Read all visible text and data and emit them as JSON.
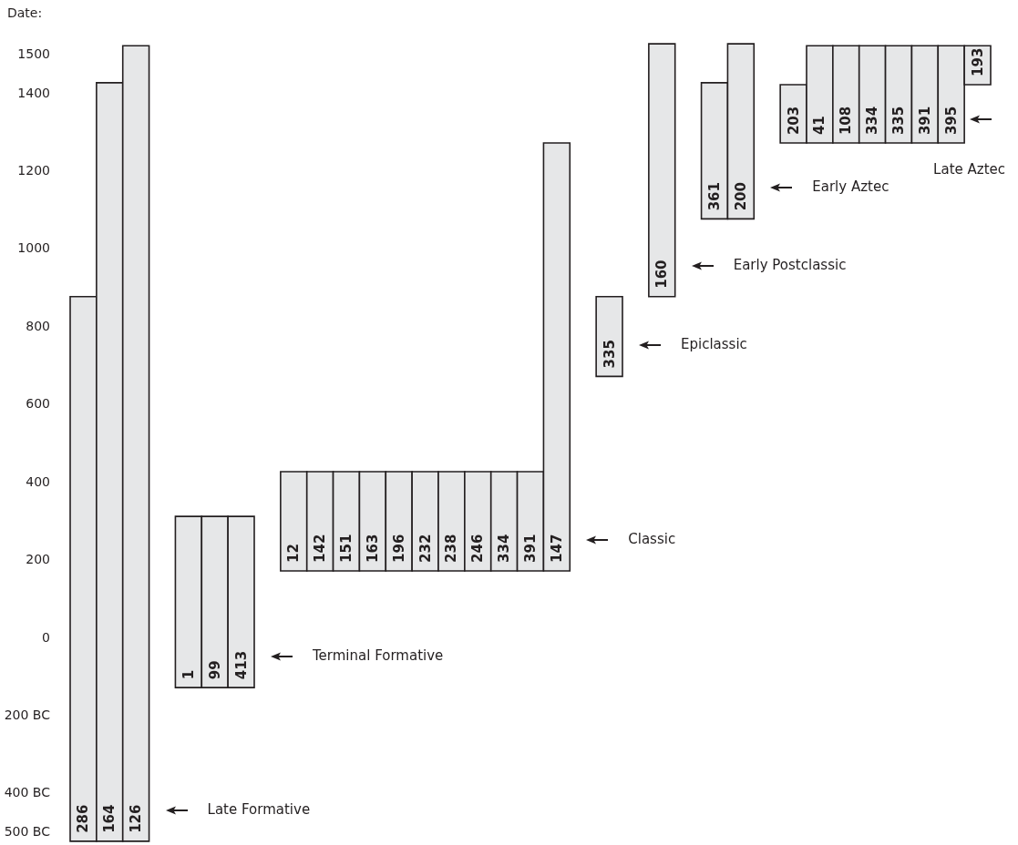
{
  "chart_data": {
    "type": "bar",
    "ylabel": "Date:",
    "categories": [
      "286",
      "164",
      "126",
      null,
      "1",
      "99",
      "413",
      null,
      "12",
      "142",
      "151",
      "163",
      "196",
      "232",
      "238",
      "246",
      "334",
      "391",
      "147",
      null,
      "335",
      null,
      "160",
      null,
      "361",
      "200",
      null,
      "203",
      "41",
      "108",
      "334",
      "335",
      "391",
      "395",
      "193"
    ],
    "base": [
      -525,
      -525,
      -525,
      null,
      -130,
      -130,
      -130,
      null,
      170,
      170,
      170,
      170,
      170,
      170,
      170,
      170,
      170,
      170,
      170,
      null,
      670,
      null,
      875,
      null,
      1075,
      1075,
      null,
      1270,
      1270,
      1270,
      1270,
      1270,
      1270,
      1270,
      1420
    ],
    "values": [
      1400,
      1950,
      2045,
      null,
      440,
      440,
      440,
      null,
      255,
      255,
      255,
      255,
      255,
      255,
      255,
      255,
      255,
      255,
      1100,
      null,
      205,
      null,
      650,
      null,
      350,
      450,
      null,
      150,
      250,
      250,
      250,
      250,
      250,
      250,
      100
    ],
    "color": "#e6e7e8",
    "ylim": [
      -530,
      1530
    ],
    "yticks": [
      1500,
      1400,
      1200,
      1000,
      800,
      600,
      400,
      200,
      0,
      {
        "value": -200,
        "label": "200 BC"
      },
      {
        "value": -400,
        "label": "400 BC"
      },
      {
        "value": -500,
        "label": "500 BC"
      }
    ],
    "grid": false,
    "annotations": [
      "Late Formative",
      "Terminal Formative",
      "Classic",
      "Epiclassic",
      "Early Postclassic",
      "Early Aztec",
      "Late Aztec"
    ]
  }
}
